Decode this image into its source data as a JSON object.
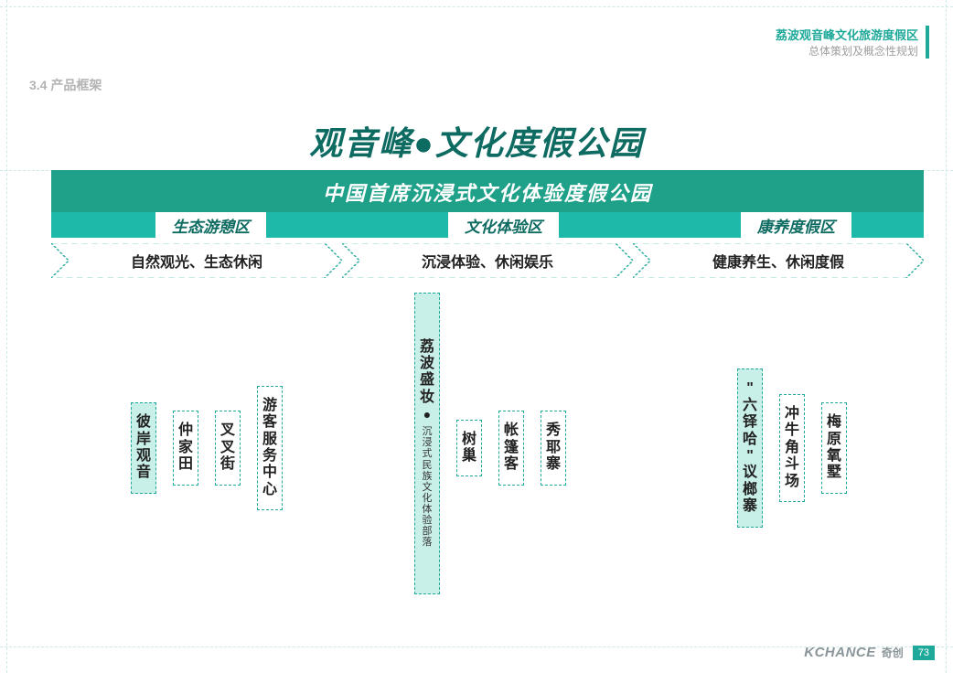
{
  "header": {
    "line1": "荔波观音峰文化旅游度假区",
    "line2": "总体策划及概念性规划"
  },
  "section_label": "3.4 产品框架",
  "title": "观音峰●文化度假公园",
  "subtitle": "中国首席沉浸式文化体验度假公园",
  "zones": {
    "z1": "生态游憩区",
    "z2": "文化体验区",
    "z3": "康养度假区"
  },
  "arrows": {
    "a1": "自然观光、生态休闲",
    "a2": "沉浸体验、休闲娱乐",
    "a3": "健康养生、休闲度假"
  },
  "group1": {
    "c1": "彼岸观音",
    "c2": "仲家田",
    "c3": "叉叉街",
    "c4": "游客服务中心"
  },
  "group2": {
    "c1_main": "荔波盛妆",
    "c1_sub": "沉浸式民族文化体验部落",
    "c2": "树巢",
    "c3": "帐篷客",
    "c4": "秀耶寨"
  },
  "group3": {
    "c1": "\"六铎哈\"议榔寨",
    "c2": "冲牛角斗场",
    "c3": "梅原氧墅"
  },
  "footer": {
    "brand": "KCHANCE",
    "brand_cn": "奇创",
    "page": "73"
  },
  "colors": {
    "teal_dark": "#0e6b62",
    "teal_fill": "#1fa088",
    "teal_bar": "#1eb9a9",
    "teal_border": "#1fa99a",
    "box_fill": "#c9efe9",
    "grey_text": "#b3b3b3"
  }
}
